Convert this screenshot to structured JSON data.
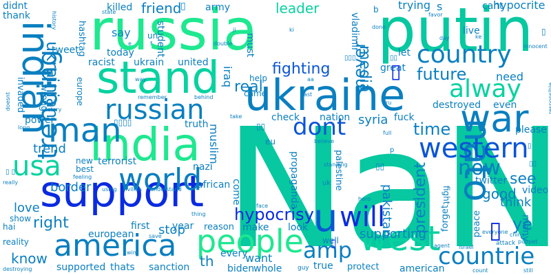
{
  "palette": {
    "background": "#ffffff",
    "colors": [
      "#0a2be0",
      "#0a7fc0",
      "#05a8c8",
      "#07d2a0",
      "#1ee890",
      "#1a3cf0",
      "#0a55d5"
    ]
  },
  "words": [
    "NaN",
    "russia",
    "putin",
    "ukraine",
    "support",
    "india",
    "stand",
    "indian",
    "america",
    "nato",
    "war",
    "people",
    "world",
    "west",
    "usa",
    "man",
    "russian",
    "trending",
    "country",
    "alway",
    "western",
    "dont",
    "will",
    "countrie",
    "amp",
    "u",
    "fighting",
    "hypocrisy",
    "now",
    "ukrainian",
    "future",
    "never",
    "time",
    "media",
    "leader",
    "friend",
    "killed",
    "army",
    "real",
    "trying",
    "cant",
    "hypocrite",
    "didnt",
    "thank",
    "trend",
    "border",
    "love",
    "right",
    "know",
    "today",
    "racist",
    "ukrain",
    "united",
    "tweet",
    "hashtag",
    "student",
    "say",
    "un",
    "must",
    "iraq",
    "vladimir",
    "great",
    "let",
    "destroyed",
    "even",
    "need",
    "good",
    "see",
    "think",
    "ye",
    "syria",
    "check",
    "fuck",
    "nation",
    "please",
    "video",
    "twitter",
    "president",
    "pakistan",
    "supporting",
    "stop",
    "first",
    "european",
    "year",
    "muslim",
    "terrorist",
    "nazi",
    "african",
    "propaganda",
    "palestine",
    "come",
    "make",
    "look",
    "want",
    "every",
    "th",
    "supported",
    "thats",
    "sanction",
    "biden",
    "whole",
    "true",
    "american",
    "protect",
    "guy",
    "well",
    "live",
    "peace",
    "many",
    "forget",
    "fight",
    "reason",
    "truth",
    "power",
    "invaded",
    "wrong",
    "europe",
    "victory",
    "best",
    "new",
    "show",
    "reality",
    "hai",
    "really",
    "destroying",
    "win",
    "save",
    "attack",
    "israel",
    "puppet",
    "china",
    "count",
    "still",
    "responsible",
    "innocent",
    "day",
    "favor",
    "state",
    "history",
    "doesnt",
    "long",
    "feeling",
    "using",
    "civilian",
    "understand",
    "thing",
    "came",
    "help",
    "eu",
    "uk",
    "hero",
    "believe",
    "standing",
    "face",
    "full",
    "east",
    "double",
    "behind",
    "remember",
    "way",
    "take",
    "done",
    "agent",
    "everyone",
    "came",
    "b",
    "s",
    "p",
    "f",
    "e",
    "ru",
    "ji",
    "ki",
    "aa",
    "ke"
  ]
}
